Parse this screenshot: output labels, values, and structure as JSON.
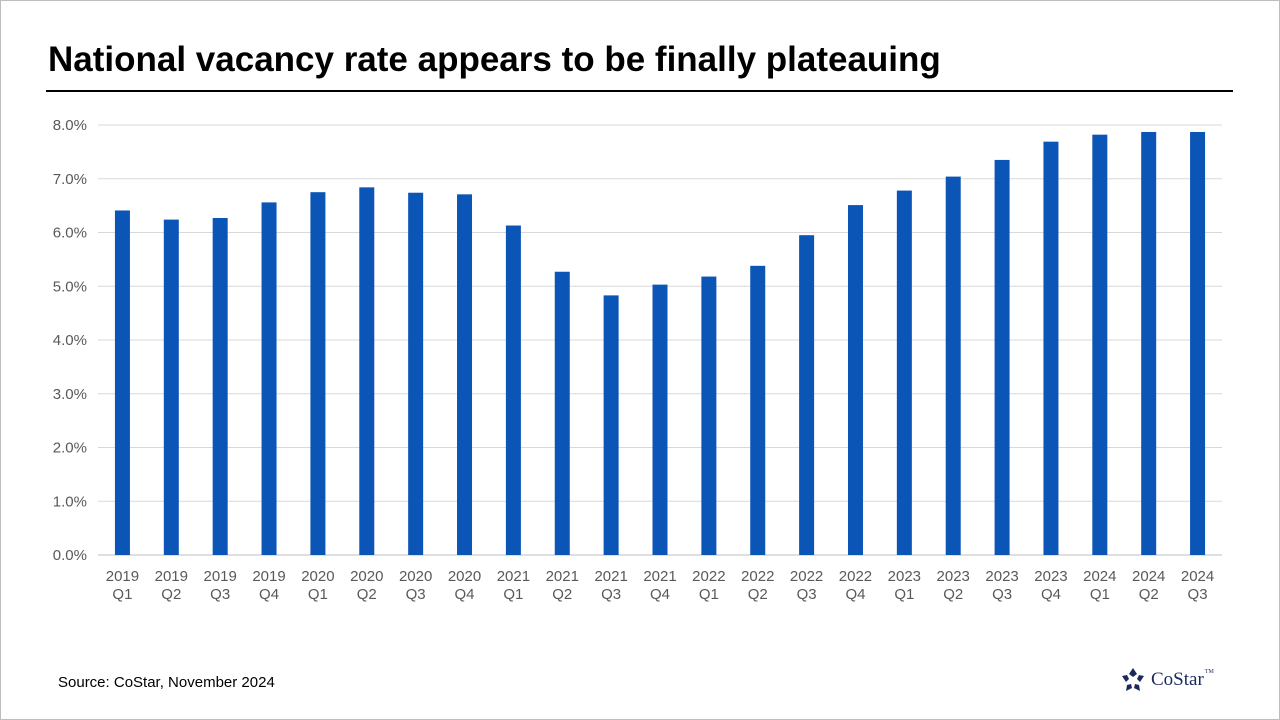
{
  "title": "National vacancy rate appears to be finally plateauing",
  "source": "Source: CoStar, November 2024",
  "logo": {
    "text": "CoStar",
    "tm": "TM"
  },
  "colors": {
    "bar": "#0b55b7",
    "grid": "#d9d9d9",
    "axis_text": "#595959",
    "logo": "#1b2a5e"
  },
  "chart_data": {
    "type": "bar",
    "title": "National vacancy rate appears to be finally plateauing",
    "xlabel": "",
    "ylabel": "",
    "ylim": [
      0,
      8
    ],
    "y_ticks": [
      "0.0%",
      "1.0%",
      "2.0%",
      "3.0%",
      "4.0%",
      "5.0%",
      "6.0%",
      "7.0%",
      "8.0%"
    ],
    "grid": true,
    "legend": "none",
    "categories": [
      [
        "2019",
        "Q1"
      ],
      [
        "2019",
        "Q2"
      ],
      [
        "2019",
        "Q3"
      ],
      [
        "2019",
        "Q4"
      ],
      [
        "2020",
        "Q1"
      ],
      [
        "2020",
        "Q2"
      ],
      [
        "2020",
        "Q3"
      ],
      [
        "2020",
        "Q4"
      ],
      [
        "2021",
        "Q1"
      ],
      [
        "2021",
        "Q2"
      ],
      [
        "2021",
        "Q3"
      ],
      [
        "2021",
        "Q4"
      ],
      [
        "2022",
        "Q1"
      ],
      [
        "2022",
        "Q2"
      ],
      [
        "2022",
        "Q3"
      ],
      [
        "2022",
        "Q4"
      ],
      [
        "2023",
        "Q1"
      ],
      [
        "2023",
        "Q2"
      ],
      [
        "2023",
        "Q3"
      ],
      [
        "2023",
        "Q4"
      ],
      [
        "2024",
        "Q1"
      ],
      [
        "2024",
        "Q2"
      ],
      [
        "2024",
        "Q3"
      ]
    ],
    "values": [
      6.41,
      6.24,
      6.27,
      6.56,
      6.75,
      6.84,
      6.74,
      6.71,
      6.13,
      5.27,
      4.83,
      5.03,
      5.18,
      5.38,
      5.95,
      6.51,
      6.78,
      7.04,
      7.35,
      7.69,
      7.82,
      7.87,
      7.87
    ]
  }
}
